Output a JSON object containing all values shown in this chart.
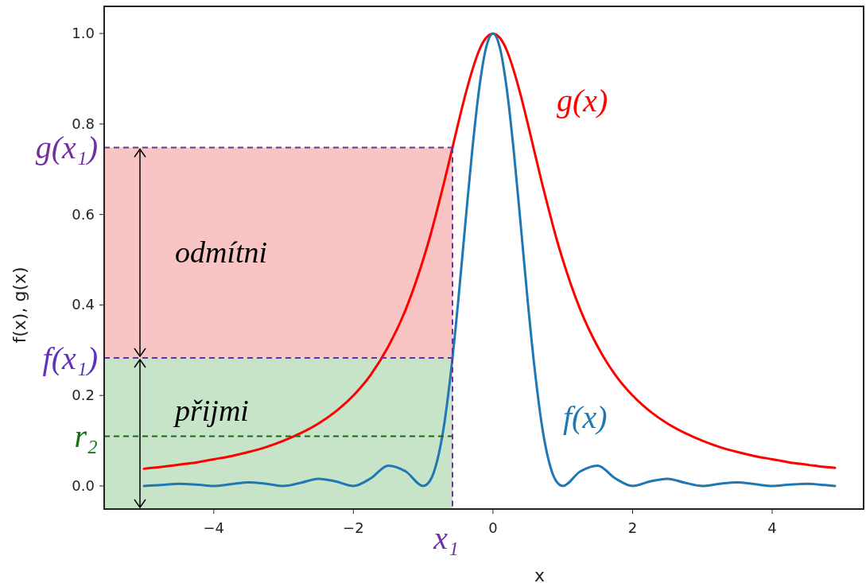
{
  "chart_data": {
    "type": "line",
    "xlabel": "x",
    "ylabel": "f(x), g(x)",
    "x": [
      -5,
      -4.75,
      -4.5,
      -4.25,
      -4,
      -3.75,
      -3.5,
      -3.25,
      -3,
      -2.75,
      -2.5,
      -2.25,
      -2,
      -1.75,
      -1.5,
      -1.25,
      -1,
      -0.9,
      -0.8,
      -0.7,
      -0.6,
      -0.5,
      -0.4,
      -0.3,
      -0.2,
      -0.1,
      0,
      0.1,
      0.2,
      0.3,
      0.4,
      0.5,
      0.6,
      0.7,
      0.8,
      0.9,
      1,
      1.25,
      1.5,
      1.75,
      2,
      2.25,
      2.5,
      2.75,
      3,
      3.25,
      3.5,
      3.75,
      4,
      4.25,
      4.5,
      4.75,
      4.9
    ],
    "series": [
      {
        "name": "g(x)",
        "color": "#ff0000",
        "values": [
          0.038,
          0.042,
          0.047,
          0.052,
          0.059,
          0.066,
          0.075,
          0.086,
          0.1,
          0.117,
          0.138,
          0.165,
          0.2,
          0.246,
          0.308,
          0.39,
          0.5,
          0.552,
          0.61,
          0.671,
          0.735,
          0.8,
          0.862,
          0.917,
          0.962,
          0.99,
          1,
          0.99,
          0.962,
          0.917,
          0.862,
          0.8,
          0.735,
          0.671,
          0.61,
          0.552,
          0.5,
          0.39,
          0.308,
          0.246,
          0.2,
          0.165,
          0.138,
          0.117,
          0.1,
          0.086,
          0.075,
          0.066,
          0.059,
          0.052,
          0.047,
          0.042,
          0.04
        ]
      },
      {
        "name": "f(x)",
        "color": "#1f77b4",
        "values": [
          0,
          0.002,
          0.005,
          0.003,
          0,
          0.004,
          0.008,
          0.005,
          0,
          0.007,
          0.016,
          0.01,
          0,
          0.017,
          0.045,
          0.032,
          0,
          0.012,
          0.055,
          0.135,
          0.255,
          0.405,
          0.573,
          0.737,
          0.875,
          0.968,
          1,
          0.968,
          0.875,
          0.737,
          0.573,
          0.405,
          0.255,
          0.135,
          0.055,
          0.012,
          0,
          0.032,
          0.045,
          0.017,
          0,
          0.01,
          0.016,
          0.007,
          0,
          0.005,
          0.008,
          0.004,
          0,
          0.003,
          0.005,
          0.002,
          0
        ]
      }
    ],
    "xlim": [
      -5.57,
      5.31
    ],
    "ylim": [
      -0.051,
      1.06
    ],
    "xticks": [
      {
        "value": -4,
        "label": "−4"
      },
      {
        "value": -2,
        "label": "−2"
      },
      0,
      2,
      4
    ],
    "yticks": [
      {
        "value": 0,
        "label": "0.0"
      },
      0.2,
      0.4,
      0.6,
      0.8,
      {
        "value": 1,
        "label": "1.0"
      }
    ],
    "ref_lines": [
      {
        "axis": "y",
        "value": 0.748,
        "label": "g(x₁)",
        "color": "#7030a0",
        "line_style": "dashed"
      },
      {
        "axis": "y",
        "value": 0.283,
        "label": "f(x₁)",
        "color": "#6030c0",
        "line_style": "dashed"
      },
      {
        "axis": "y",
        "value": 0.11,
        "label": "r₂",
        "color": "#107010",
        "line_style": "dashed"
      },
      {
        "axis": "x",
        "value": -0.58,
        "label": "x₁",
        "color": "#7030a0",
        "line_style": "dashed"
      }
    ],
    "bands": [
      {
        "axis": "y",
        "from": 0.283,
        "to": 0.748,
        "label": "odmítni",
        "color": "#f9c4c4"
      },
      {
        "axis": "y",
        "from": -0.051,
        "to": 0.283,
        "label": "přijmi",
        "color": "#c8e4c8"
      }
    ]
  }
}
